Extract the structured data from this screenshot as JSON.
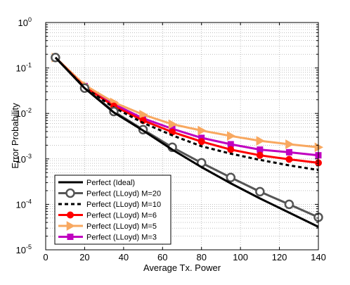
{
  "chart_data": {
    "type": "line",
    "title": "",
    "xlabel": "Average Tx. Power",
    "ylabel": "Error Probability",
    "xlim": [
      0,
      140
    ],
    "ylim": [
      1e-05,
      1
    ],
    "yscale": "log",
    "grid": true,
    "legend_position": "bottom-left",
    "x_ticks": [
      0,
      20,
      40,
      60,
      80,
      100,
      120,
      140
    ],
    "x_tick_labels": [
      "0",
      "20",
      "40",
      "60",
      "80",
      "100",
      "120",
      "140"
    ],
    "y_ticks": [
      1e-05,
      0.0001,
      0.001,
      0.01,
      0.1,
      1
    ],
    "y_tick_labels": [
      {
        "base": "10",
        "exp": "-5"
      },
      {
        "base": "10",
        "exp": "-4"
      },
      {
        "base": "10",
        "exp": "-3"
      },
      {
        "base": "10",
        "exp": "-2"
      },
      {
        "base": "10",
        "exp": "-1"
      },
      {
        "base": "10",
        "exp": "0"
      }
    ],
    "series": [
      {
        "name": "Perfect (Ideal)",
        "color": "#000000",
        "dash": "solid",
        "marker": "none",
        "x": [
          5,
          20,
          35,
          50,
          65,
          80,
          95,
          110,
          125,
          140
        ],
        "y": [
          0.17,
          0.036,
          0.0105,
          0.0042,
          0.0016,
          0.00066,
          0.00029,
          0.000135,
          6.6e-05,
          3.2e-05
        ]
      },
      {
        "name": "Perfect (LLoyd) M=20",
        "color": "#555555",
        "dash": "solid",
        "marker": "circle-open",
        "x": [
          5,
          20,
          35,
          50,
          65,
          80,
          95,
          110,
          125,
          140
        ],
        "y": [
          0.17,
          0.036,
          0.011,
          0.0044,
          0.0018,
          0.00082,
          0.00039,
          0.00019,
          0.0001,
          5.2e-05
        ]
      },
      {
        "name": "Perfect (LLoyd) M=10",
        "color": "#000000",
        "dash": "dashed",
        "marker": "none",
        "x": [
          5,
          20,
          35,
          50,
          65,
          80,
          95,
          110,
          125,
          140
        ],
        "y": [
          0.17,
          0.037,
          0.0135,
          0.0062,
          0.0033,
          0.0019,
          0.0013,
          0.00095,
          0.00072,
          0.00057
        ]
      },
      {
        "name": "Perfect (LLoyd) M=6",
        "color": "#ff0000",
        "dash": "solid",
        "marker": "circle-filled",
        "x": [
          5,
          20,
          35,
          50,
          65,
          80,
          95,
          110,
          125,
          140
        ],
        "y": [
          0.17,
          0.038,
          0.0145,
          0.007,
          0.0039,
          0.0024,
          0.0016,
          0.0012,
          0.00098,
          0.00082
        ]
      },
      {
        "name": "Perfect (LLoyd) M=5",
        "color": "#f8a860",
        "dash": "solid",
        "marker": "triangle-right",
        "x": [
          5,
          20,
          35,
          50,
          65,
          80,
          95,
          110,
          125,
          140
        ],
        "y": [
          0.17,
          0.042,
          0.0175,
          0.0094,
          0.0058,
          0.0042,
          0.0032,
          0.0025,
          0.0021,
          0.0018
        ]
      },
      {
        "name": "Perfect (LLoyd) M=3",
        "color": "#c000c0",
        "dash": "solid",
        "marker": "square",
        "x": [
          5,
          20,
          35,
          50,
          65,
          80,
          95,
          110,
          125,
          140
        ],
        "y": [
          0.17,
          0.04,
          0.016,
          0.0078,
          0.0046,
          0.0029,
          0.0021,
          0.0016,
          0.0014,
          0.0012
        ]
      }
    ]
  }
}
